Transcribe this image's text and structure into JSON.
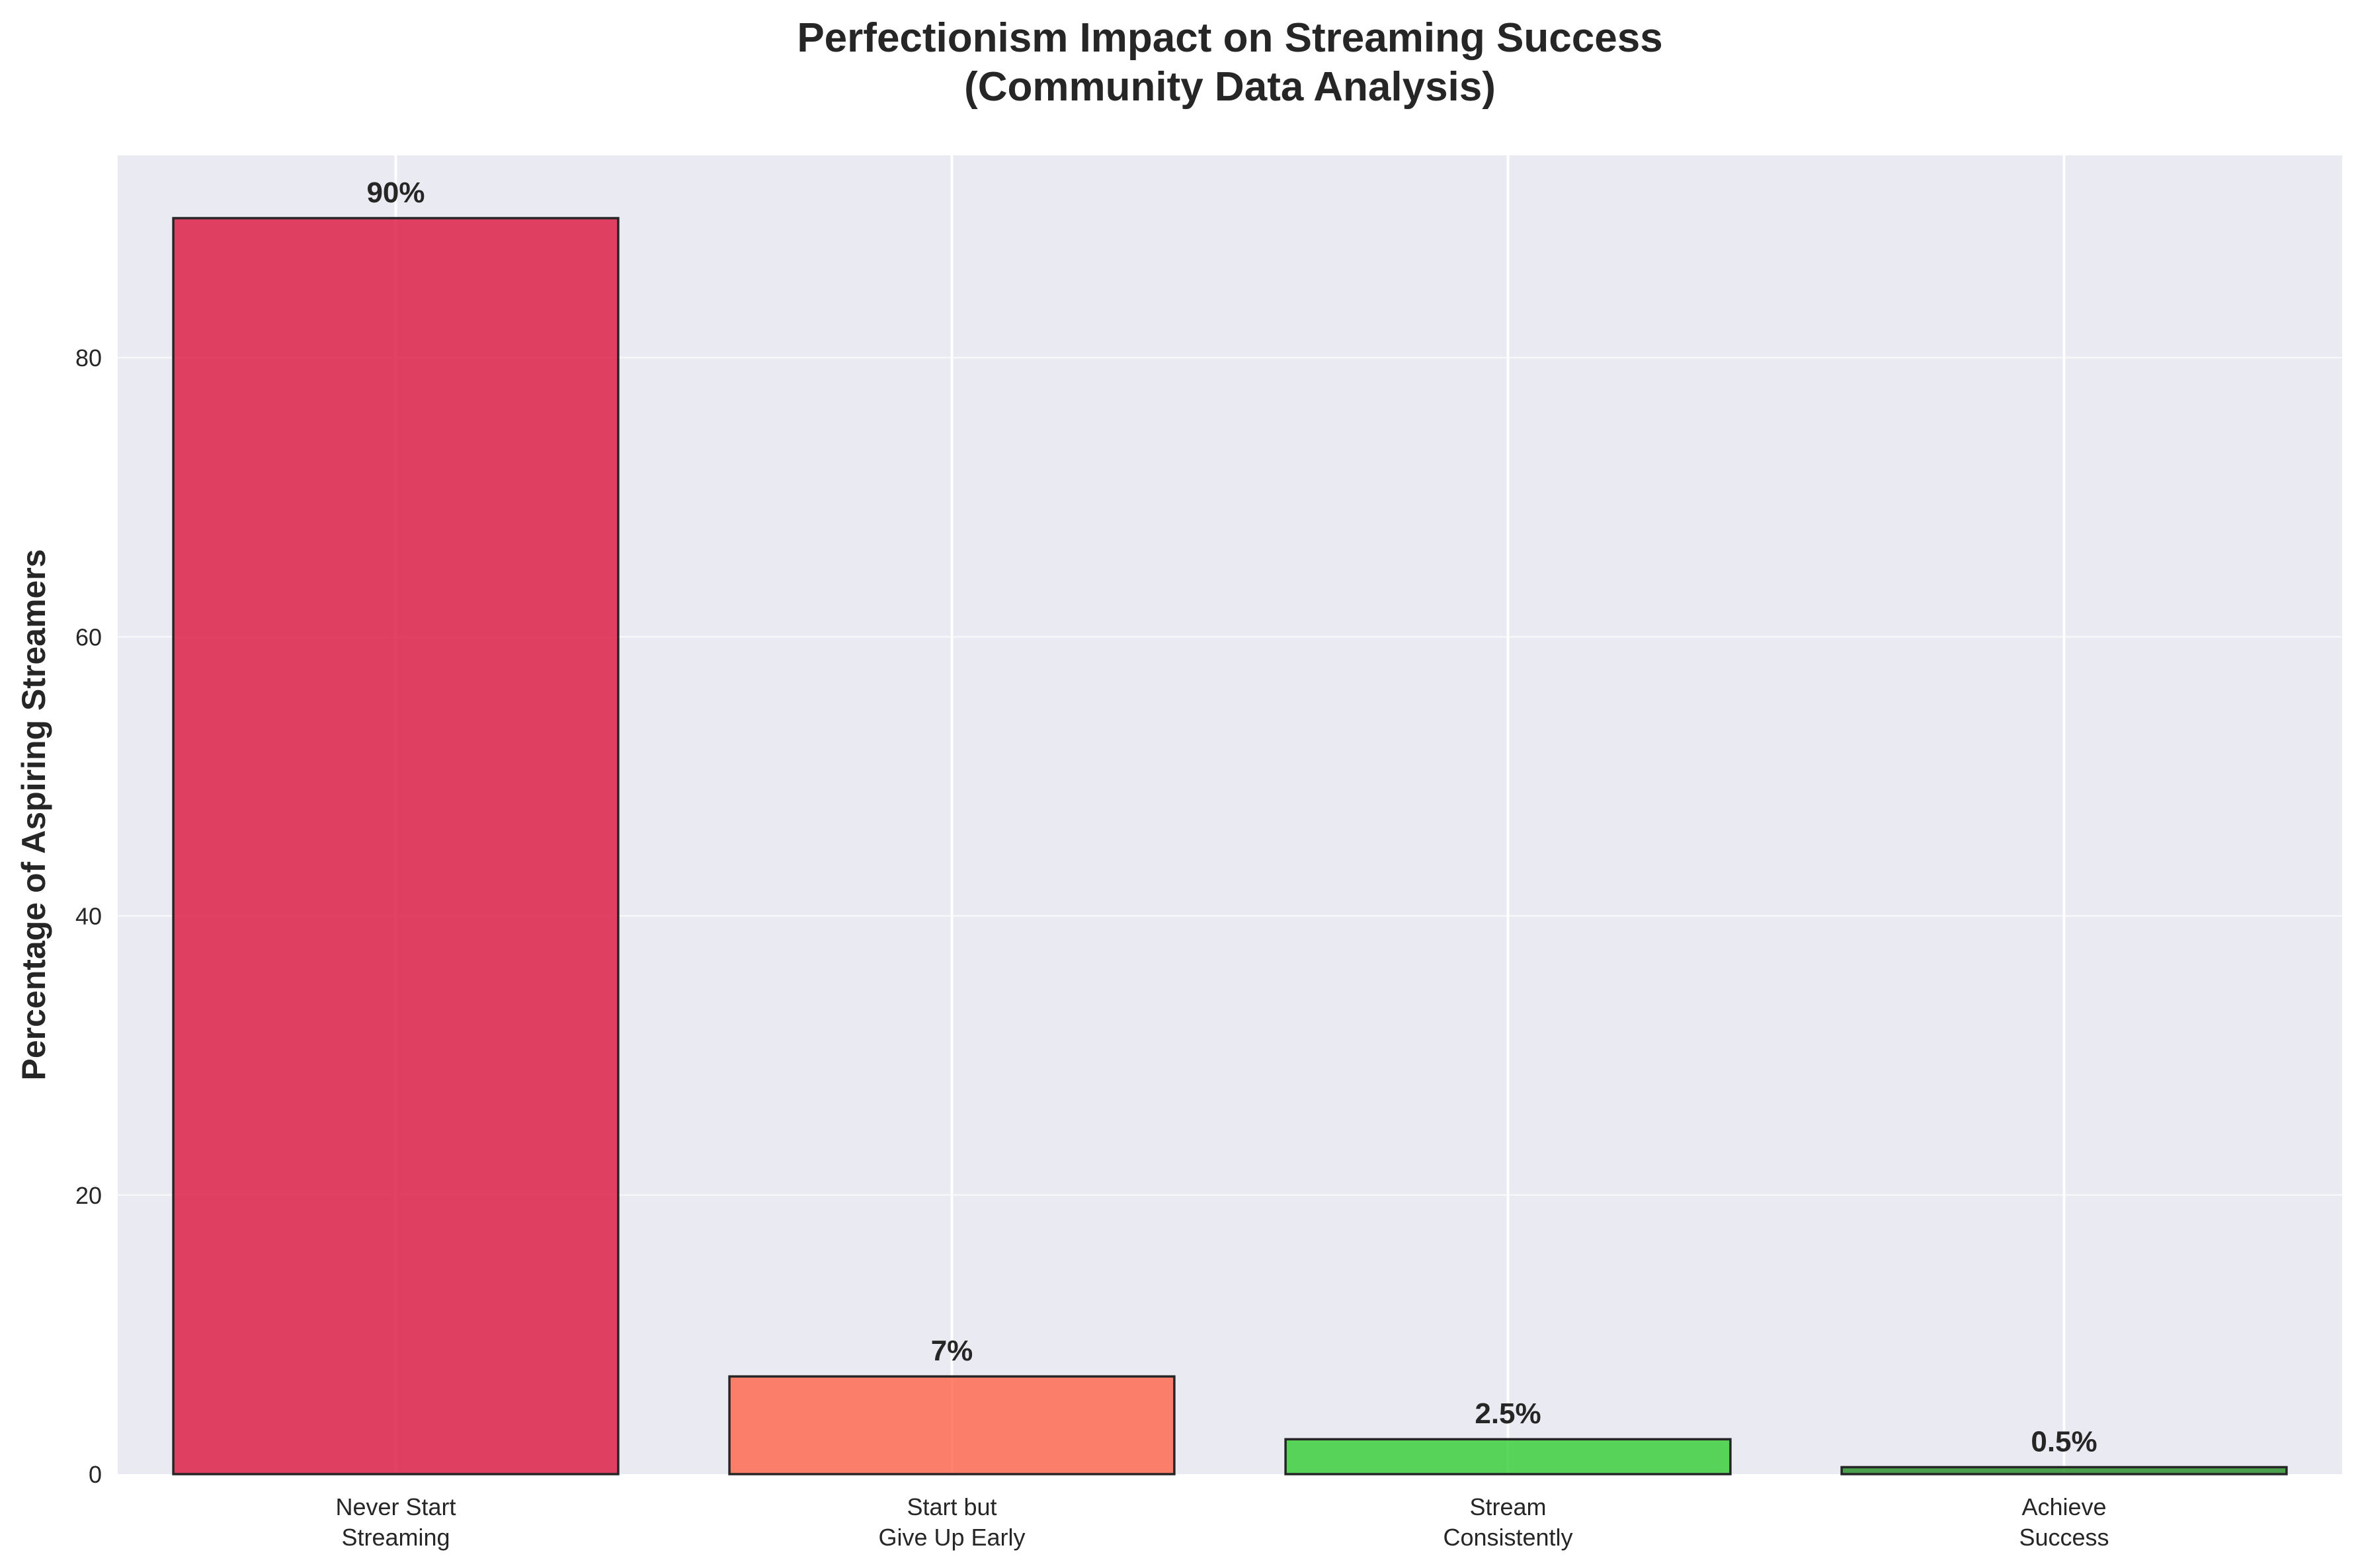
{
  "chart_data": {
    "type": "bar",
    "title": "Perfectionism Impact on Streaming Success\n(Community Data Analysis)",
    "xlabel": "",
    "ylabel": "Percentage of Aspiring Streamers",
    "categories": [
      "Never Start\nStreaming",
      "Start but\nGive Up Early",
      "Stream\nConsistently",
      "Achieve\nSuccess"
    ],
    "values": [
      90,
      7,
      2.5,
      0.5
    ],
    "value_labels": [
      "90%",
      "7%",
      "2.5%",
      "0.5%"
    ],
    "bar_colors": [
      "#dc143c",
      "#ff6347",
      "#32cd32",
      "#228b22"
    ],
    "yticks": [
      0,
      20,
      40,
      60,
      80
    ],
    "ylim": [
      0,
      94.5
    ],
    "grid": true,
    "legend": "none"
  },
  "style": {
    "plot_background": "#eaeaf2",
    "grid_color": "#ffffff",
    "bar_edge": "#262626",
    "text_color": "#262626"
  }
}
